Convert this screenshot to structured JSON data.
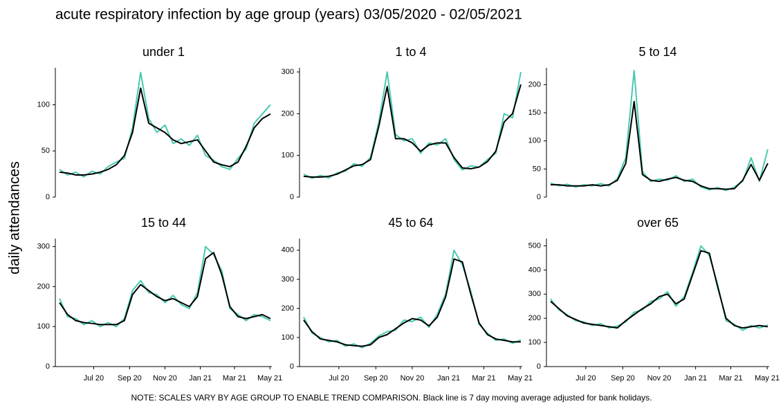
{
  "title": "acute respiratory infection by age group (years) 03/05/2020 - 02/05/2021",
  "y_label": "daily attendances",
  "note": "NOTE: SCALES VARY BY AGE GROUP TO ENABLE TREND COMPARISON. Black line is 7 day moving average adjusted for bank holidays.",
  "chart_data": [
    {
      "type": "line",
      "title": "under 1",
      "x": [
        "2020-05-03",
        "2020-05-17",
        "2020-05-31",
        "2020-06-14",
        "2020-06-28",
        "2020-07-12",
        "2020-07-26",
        "2020-08-09",
        "2020-08-23",
        "2020-09-06",
        "2020-09-20",
        "2020-10-04",
        "2020-10-18",
        "2020-11-01",
        "2020-11-15",
        "2020-11-29",
        "2020-12-13",
        "2020-12-27",
        "2021-01-10",
        "2021-01-24",
        "2021-02-07",
        "2021-02-21",
        "2021-03-07",
        "2021-03-21",
        "2021-04-04",
        "2021-04-18",
        "2021-05-02"
      ],
      "xlim": [
        "2020-05-03",
        "2021-05-02"
      ],
      "xticks": [
        {
          "value": "2020-07-01",
          "label": "Jul 20"
        },
        {
          "value": "2020-09-01",
          "label": "Sep 20"
        },
        {
          "value": "2020-11-01",
          "label": "Nov 20"
        },
        {
          "value": "2021-01-01",
          "label": "Jan 21"
        },
        {
          "value": "2021-03-01",
          "label": "Mar 21"
        },
        {
          "value": "2021-05-01",
          "label": "May 21"
        }
      ],
      "ylim": [
        0,
        140
      ],
      "yticks": [
        0,
        50,
        100
      ],
      "series": [
        {
          "color": "#48c9b0",
          "values": [
            30,
            24,
            27,
            22,
            28,
            25,
            33,
            38,
            42,
            75,
            135,
            85,
            70,
            78,
            58,
            63,
            56,
            67,
            45,
            40,
            33,
            30,
            42,
            52,
            80,
            90,
            100
          ]
        },
        {
          "color": "#000000",
          "values": [
            27,
            26,
            24,
            24,
            25,
            27,
            30,
            35,
            45,
            70,
            118,
            80,
            75,
            70,
            62,
            58,
            60,
            62,
            50,
            38,
            35,
            33,
            38,
            55,
            75,
            85,
            90
          ]
        }
      ]
    },
    {
      "type": "line",
      "title": "1 to 4",
      "x": [
        "2020-05-03",
        "2020-05-17",
        "2020-05-31",
        "2020-06-14",
        "2020-06-28",
        "2020-07-12",
        "2020-07-26",
        "2020-08-09",
        "2020-08-23",
        "2020-09-06",
        "2020-09-20",
        "2020-10-04",
        "2020-10-18",
        "2020-11-01",
        "2020-11-15",
        "2020-11-29",
        "2020-12-13",
        "2020-12-27",
        "2021-01-10",
        "2021-01-24",
        "2021-02-07",
        "2021-02-21",
        "2021-03-07",
        "2021-03-21",
        "2021-04-04",
        "2021-04-18",
        "2021-05-02"
      ],
      "xlim": [
        "2020-05-03",
        "2021-05-02"
      ],
      "xticks": [
        {
          "value": "2020-07-01",
          "label": "Jul 20"
        },
        {
          "value": "2020-09-01",
          "label": "Sep 20"
        },
        {
          "value": "2020-11-01",
          "label": "Nov 20"
        },
        {
          "value": "2021-01-01",
          "label": "Jan 21"
        },
        {
          "value": "2021-03-01",
          "label": "Mar 21"
        },
        {
          "value": "2021-05-01",
          "label": "May 21"
        }
      ],
      "ylim": [
        0,
        310
      ],
      "yticks": [
        0,
        100,
        200,
        300
      ],
      "series": [
        {
          "color": "#48c9b0",
          "values": [
            55,
            45,
            52,
            46,
            58,
            62,
            80,
            74,
            95,
            180,
            300,
            150,
            135,
            140,
            105,
            130,
            125,
            140,
            90,
            65,
            75,
            72,
            90,
            105,
            200,
            190,
            300
          ]
        },
        {
          "color": "#000000",
          "values": [
            50,
            48,
            48,
            50,
            55,
            65,
            75,
            78,
            90,
            170,
            265,
            140,
            140,
            130,
            110,
            125,
            130,
            130,
            95,
            70,
            68,
            72,
            85,
            110,
            180,
            200,
            270
          ]
        }
      ]
    },
    {
      "type": "line",
      "title": "5 to 14",
      "x": [
        "2020-05-03",
        "2020-05-17",
        "2020-05-31",
        "2020-06-14",
        "2020-06-28",
        "2020-07-12",
        "2020-07-26",
        "2020-08-09",
        "2020-08-23",
        "2020-09-06",
        "2020-09-20",
        "2020-10-04",
        "2020-10-18",
        "2020-11-01",
        "2020-11-15",
        "2020-11-29",
        "2020-12-13",
        "2020-12-27",
        "2021-01-10",
        "2021-01-24",
        "2021-02-07",
        "2021-02-21",
        "2021-03-07",
        "2021-03-21",
        "2021-04-04",
        "2021-04-18",
        "2021-05-02"
      ],
      "xlim": [
        "2020-05-03",
        "2021-05-02"
      ],
      "xticks": [
        {
          "value": "2020-07-01",
          "label": "Jul 20"
        },
        {
          "value": "2020-09-01",
          "label": "Sep 20"
        },
        {
          "value": "2020-11-01",
          "label": "Nov 20"
        },
        {
          "value": "2021-01-01",
          "label": "Jan 21"
        },
        {
          "value": "2021-03-01",
          "label": "Mar 21"
        },
        {
          "value": "2021-05-01",
          "label": "May 21"
        }
      ],
      "ylim": [
        0,
        230
      ],
      "yticks": [
        0,
        50,
        100,
        150,
        200
      ],
      "series": [
        {
          "color": "#48c9b0",
          "values": [
            25,
            20,
            23,
            18,
            22,
            20,
            24,
            20,
            33,
            70,
            225,
            45,
            28,
            32,
            30,
            38,
            28,
            32,
            18,
            13,
            17,
            12,
            18,
            28,
            70,
            28,
            85
          ]
        },
        {
          "color": "#000000",
          "values": [
            22,
            22,
            20,
            20,
            20,
            22,
            20,
            22,
            30,
            60,
            170,
            40,
            30,
            28,
            32,
            35,
            30,
            28,
            20,
            15,
            15,
            14,
            15,
            30,
            58,
            30,
            60
          ]
        }
      ]
    },
    {
      "type": "line",
      "title": "15 to 44",
      "x": [
        "2020-05-03",
        "2020-05-17",
        "2020-05-31",
        "2020-06-14",
        "2020-06-28",
        "2020-07-12",
        "2020-07-26",
        "2020-08-09",
        "2020-08-23",
        "2020-09-06",
        "2020-09-20",
        "2020-10-04",
        "2020-10-18",
        "2020-11-01",
        "2020-11-15",
        "2020-11-29",
        "2020-12-13",
        "2020-12-27",
        "2021-01-10",
        "2021-01-24",
        "2021-02-07",
        "2021-02-21",
        "2021-03-07",
        "2021-03-21",
        "2021-04-04",
        "2021-04-18",
        "2021-05-02"
      ],
      "xlim": [
        "2020-05-03",
        "2021-05-02"
      ],
      "xticks": [
        {
          "value": "2020-07-01",
          "label": "Jul 20"
        },
        {
          "value": "2020-09-01",
          "label": "Sep 20"
        },
        {
          "value": "2020-11-01",
          "label": "Nov 20"
        },
        {
          "value": "2021-01-01",
          "label": "Jan 21"
        },
        {
          "value": "2021-03-01",
          "label": "Mar 21"
        },
        {
          "value": "2021-05-01",
          "label": "May 21"
        }
      ],
      "ylim": [
        0,
        320
      ],
      "yticks": [
        0,
        100,
        200,
        300
      ],
      "series": [
        {
          "color": "#48c9b0",
          "values": [
            170,
            125,
            120,
            105,
            115,
            100,
            110,
            100,
            120,
            190,
            215,
            185,
            180,
            160,
            178,
            155,
            145,
            185,
            300,
            280,
            240,
            145,
            130,
            115,
            130,
            125,
            115
          ]
        },
        {
          "color": "#000000",
          "values": [
            160,
            130,
            115,
            110,
            108,
            105,
            105,
            105,
            115,
            180,
            205,
            190,
            175,
            165,
            170,
            160,
            150,
            175,
            270,
            285,
            230,
            150,
            125,
            120,
            125,
            130,
            120
          ]
        }
      ]
    },
    {
      "type": "line",
      "title": "45 to 64",
      "x": [
        "2020-05-03",
        "2020-05-17",
        "2020-05-31",
        "2020-06-14",
        "2020-06-28",
        "2020-07-12",
        "2020-07-26",
        "2020-08-09",
        "2020-08-23",
        "2020-09-06",
        "2020-09-20",
        "2020-10-04",
        "2020-10-18",
        "2020-11-01",
        "2020-11-15",
        "2020-11-29",
        "2020-12-13",
        "2020-12-27",
        "2021-01-10",
        "2021-01-24",
        "2021-02-07",
        "2021-02-21",
        "2021-03-07",
        "2021-03-21",
        "2021-04-04",
        "2021-04-18",
        "2021-05-02"
      ],
      "xlim": [
        "2020-05-03",
        "2021-05-02"
      ],
      "xticks": [
        {
          "value": "2020-07-01",
          "label": "Jul 20"
        },
        {
          "value": "2020-09-01",
          "label": "Sep 20"
        },
        {
          "value": "2020-11-01",
          "label": "Nov 20"
        },
        {
          "value": "2021-01-01",
          "label": "Jan 21"
        },
        {
          "value": "2021-03-01",
          "label": "Mar 21"
        },
        {
          "value": "2021-05-01",
          "label": "May 21"
        }
      ],
      "ylim": [
        0,
        440
      ],
      "yticks": [
        0,
        100,
        200,
        300,
        400
      ],
      "series": [
        {
          "color": "#48c9b0",
          "values": [
            170,
            115,
            100,
            85,
            90,
            70,
            78,
            65,
            80,
            105,
            120,
            125,
            160,
            155,
            170,
            135,
            180,
            250,
            400,
            350,
            260,
            145,
            115,
            90,
            95,
            80,
            92
          ]
        },
        {
          "color": "#000000",
          "values": [
            160,
            120,
            95,
            90,
            85,
            75,
            72,
            70,
            75,
            100,
            110,
            130,
            150,
            165,
            160,
            140,
            170,
            240,
            370,
            360,
            250,
            150,
            110,
            95,
            90,
            85,
            85
          ]
        }
      ]
    },
    {
      "type": "line",
      "title": "over 65",
      "x": [
        "2020-05-03",
        "2020-05-17",
        "2020-05-31",
        "2020-06-14",
        "2020-06-28",
        "2020-07-12",
        "2020-07-26",
        "2020-08-09",
        "2020-08-23",
        "2020-09-06",
        "2020-09-20",
        "2020-10-04",
        "2020-10-18",
        "2020-11-01",
        "2020-11-15",
        "2020-11-29",
        "2020-12-13",
        "2020-12-27",
        "2021-01-10",
        "2021-01-24",
        "2021-02-07",
        "2021-02-21",
        "2021-03-07",
        "2021-03-21",
        "2021-04-04",
        "2021-04-18",
        "2021-05-02"
      ],
      "xlim": [
        "2020-05-03",
        "2021-05-02"
      ],
      "xticks": [
        {
          "value": "2020-07-01",
          "label": "Jul 20"
        },
        {
          "value": "2020-09-01",
          "label": "Sep 20"
        },
        {
          "value": "2020-11-01",
          "label": "Nov 20"
        },
        {
          "value": "2021-01-01",
          "label": "Jan 21"
        },
        {
          "value": "2021-03-01",
          "label": "Mar 21"
        },
        {
          "value": "2021-05-01",
          "label": "May 21"
        }
      ],
      "ylim": [
        0,
        530
      ],
      "yticks": [
        0,
        100,
        200,
        300,
        400,
        500
      ],
      "series": [
        {
          "color": "#48c9b0",
          "values": [
            280,
            235,
            215,
            190,
            185,
            170,
            178,
            160,
            168,
            185,
            225,
            235,
            270,
            280,
            310,
            250,
            290,
            390,
            500,
            460,
            340,
            190,
            175,
            150,
            170,
            160,
            172
          ]
        },
        {
          "color": "#000000",
          "values": [
            270,
            240,
            210,
            195,
            180,
            175,
            170,
            165,
            160,
            190,
            215,
            240,
            260,
            290,
            300,
            260,
            280,
            380,
            480,
            470,
            330,
            200,
            170,
            160,
            165,
            170,
            165
          ]
        }
      ]
    }
  ]
}
